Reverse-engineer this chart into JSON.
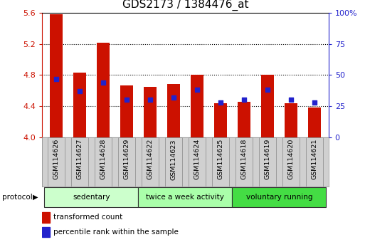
{
  "title": "GDS2173 / 1384476_at",
  "samples": [
    "GSM114626",
    "GSM114627",
    "GSM114628",
    "GSM114629",
    "GSM114622",
    "GSM114623",
    "GSM114624",
    "GSM114625",
    "GSM114618",
    "GSM114619",
    "GSM114620",
    "GSM114621"
  ],
  "red_values": [
    5.58,
    4.83,
    5.21,
    4.67,
    4.65,
    4.68,
    4.8,
    4.44,
    4.46,
    4.8,
    4.44,
    4.38
  ],
  "blue_values": [
    47,
    37,
    44,
    30,
    30,
    32,
    38,
    28,
    30,
    38,
    30,
    28
  ],
  "ylim_left": [
    4.0,
    5.6
  ],
  "ylim_right": [
    0,
    100
  ],
  "yticks_left": [
    4.0,
    4.4,
    4.8,
    5.2,
    5.6
  ],
  "yticks_right": [
    0,
    25,
    50,
    75,
    100
  ],
  "red_color": "#cc1100",
  "blue_color": "#2222cc",
  "bar_width": 0.55,
  "groups": [
    {
      "label": "sedentary",
      "start": 0,
      "end": 4
    },
    {
      "label": "twice a week activity",
      "start": 4,
      "end": 8
    },
    {
      "label": "voluntary running",
      "start": 8,
      "end": 12
    }
  ],
  "group_colors": [
    "#ccffcc",
    "#aaffaa",
    "#44dd44"
  ],
  "protocol_label": "protocol",
  "legend_red": "transformed count",
  "legend_blue": "percentile rank within the sample",
  "background_color": "#ffffff",
  "plot_bg_color": "#ffffff",
  "grid_color": "#000000",
  "title_fontsize": 11,
  "tick_fontsize": 8,
  "label_fontsize": 8,
  "sample_box_color": "#d0d0d0"
}
